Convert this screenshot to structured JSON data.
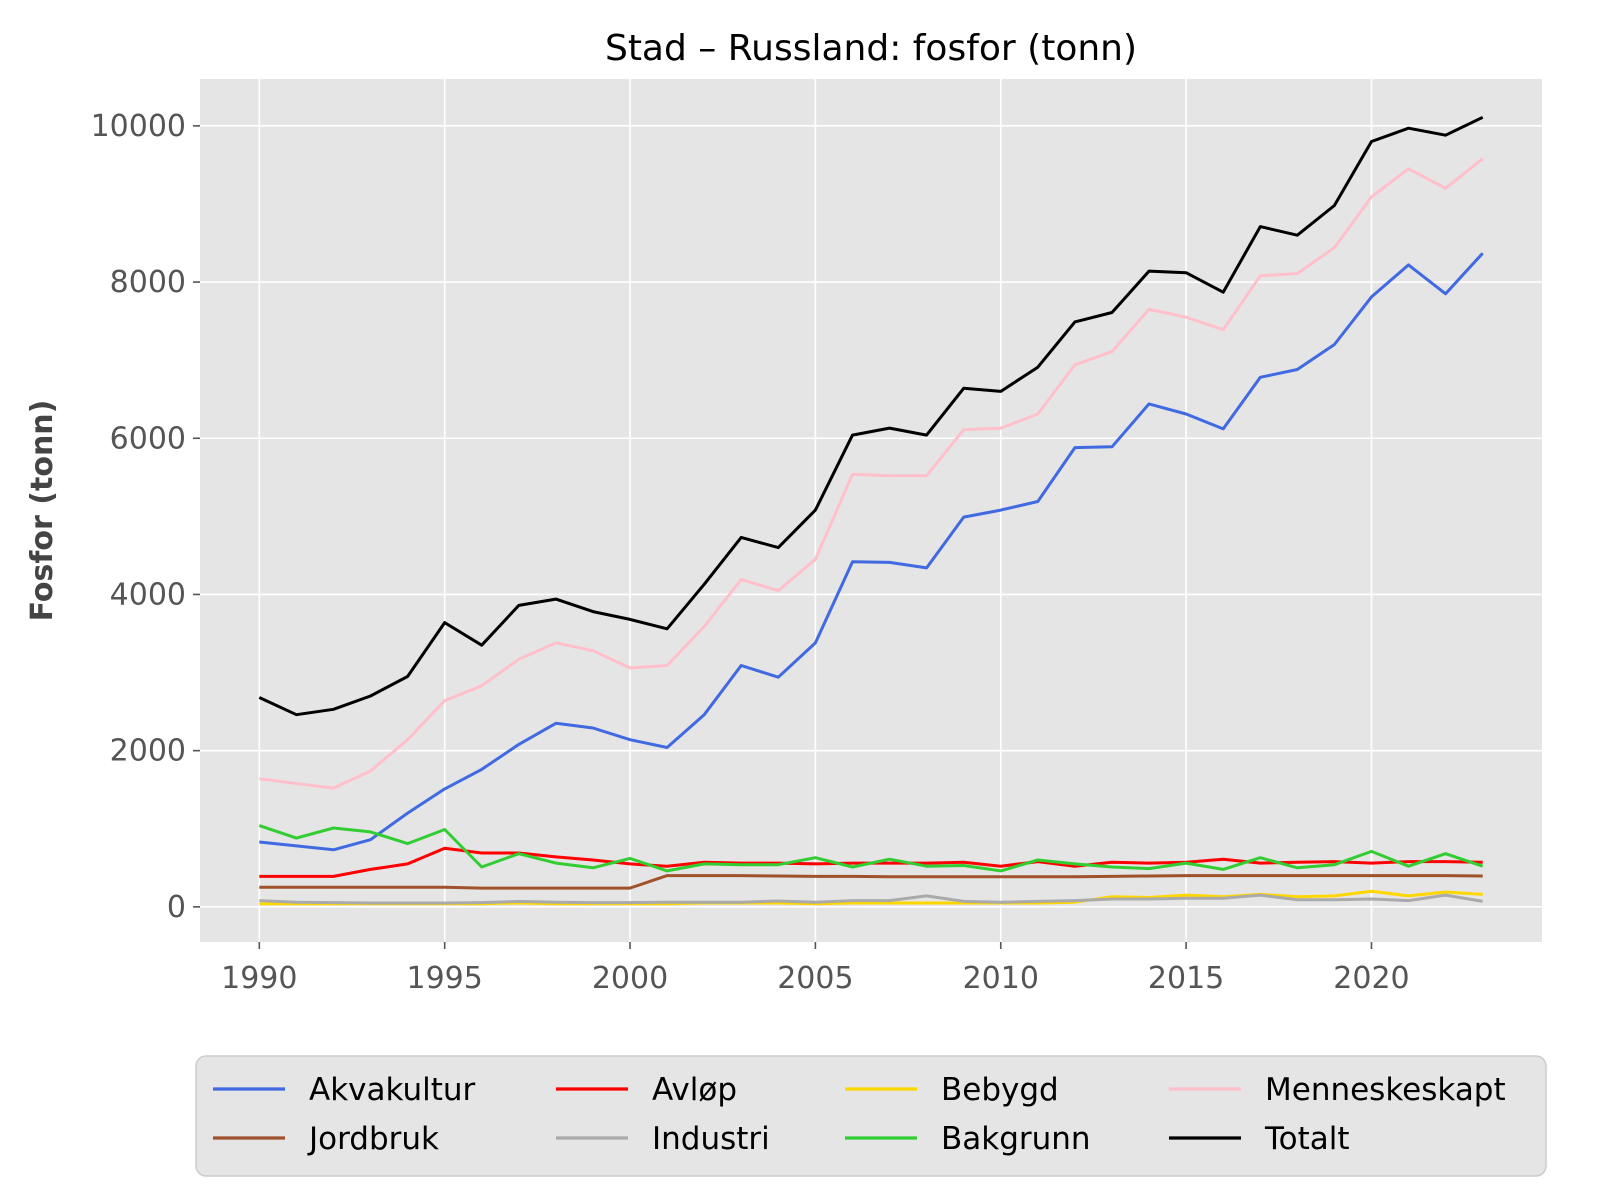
{
  "chart_data": {
    "type": "line",
    "title": "Stad – Russland: fosfor (tonn)",
    "xlabel": "",
    "ylabel": "Fosfor (tonn)",
    "xlim": [
      1988.4,
      2024.6
    ],
    "ylim": [
      -450,
      10600
    ],
    "xticks": [
      1990,
      1995,
      2000,
      2005,
      2010,
      2015,
      2020
    ],
    "yticks": [
      0,
      2000,
      4000,
      6000,
      8000,
      10000
    ],
    "grid": true,
    "legend_position": "bottom-center",
    "x": [
      1990,
      1991,
      1992,
      1993,
      1994,
      1995,
      1996,
      1997,
      1998,
      1999,
      2000,
      2001,
      2002,
      2003,
      2004,
      2005,
      2006,
      2007,
      2008,
      2009,
      2010,
      2011,
      2012,
      2013,
      2014,
      2015,
      2016,
      2017,
      2018,
      2019,
      2020,
      2021,
      2022,
      2023
    ],
    "series": [
      {
        "name": "Akvakultur",
        "color": "#4169e1",
        "values": [
          830,
          780,
          730,
          860,
          1200,
          1510,
          1760,
          2080,
          2350,
          2290,
          2140,
          2040,
          2460,
          3090,
          2940,
          3380,
          4420,
          4410,
          4340,
          4990,
          5080,
          5190,
          5880,
          5890,
          6440,
          6310,
          6120,
          6780,
          6880,
          7200,
          7810,
          8220,
          7850,
          8370
        ]
      },
      {
        "name": "Avløp",
        "color": "#ff0000",
        "values": [
          390,
          390,
          390,
          480,
          550,
          750,
          690,
          690,
          640,
          600,
          550,
          520,
          570,
          560,
          560,
          550,
          560,
          560,
          560,
          570,
          520,
          580,
          520,
          570,
          560,
          570,
          610,
          560,
          570,
          580,
          560,
          580,
          580,
          570
        ]
      },
      {
        "name": "Bebygd",
        "color": "#ffd700",
        "values": [
          40,
          40,
          40,
          40,
          40,
          40,
          40,
          50,
          40,
          40,
          40,
          40,
          50,
          50,
          50,
          40,
          50,
          50,
          50,
          50,
          50,
          50,
          60,
          130,
          120,
          150,
          130,
          160,
          130,
          140,
          200,
          140,
          190,
          160
        ]
      },
      {
        "name": "Menneskeskapt",
        "color": "#ffc0cb",
        "values": [
          1640,
          1580,
          1520,
          1740,
          2140,
          2640,
          2830,
          3170,
          3380,
          3280,
          3060,
          3090,
          3590,
          4190,
          4050,
          4450,
          5540,
          5520,
          5520,
          6110,
          6130,
          6310,
          6940,
          7110,
          7650,
          7550,
          7390,
          8080,
          8110,
          8440,
          9090,
          9450,
          9200,
          9580
        ]
      },
      {
        "name": "Jordbruk",
        "color": "#a0522d",
        "values": [
          250,
          250,
          250,
          250,
          250,
          250,
          240,
          240,
          240,
          240,
          240,
          400,
          400,
          400,
          395,
          390,
          390,
          385,
          385,
          385,
          385,
          385,
          385,
          390,
          395,
          400,
          400,
          400,
          400,
          400,
          400,
          400,
          400,
          395
        ]
      },
      {
        "name": "Industri",
        "color": "#aaaaaa",
        "values": [
          80,
          60,
          55,
          50,
          50,
          50,
          55,
          70,
          60,
          55,
          55,
          60,
          60,
          60,
          75,
          60,
          80,
          80,
          140,
          70,
          60,
          70,
          80,
          100,
          100,
          110,
          110,
          150,
          90,
          90,
          100,
          80,
          150,
          70
        ]
      },
      {
        "name": "Bakgrunn",
        "color": "#32cd32",
        "values": [
          1040,
          880,
          1010,
          960,
          810,
          990,
          510,
          680,
          560,
          500,
          620,
          460,
          550,
          540,
          540,
          630,
          510,
          610,
          520,
          530,
          460,
          600,
          550,
          510,
          490,
          560,
          480,
          630,
          500,
          540,
          710,
          520,
          680,
          520
        ]
      },
      {
        "name": "Totalt",
        "color": "#000000",
        "values": [
          2680,
          2460,
          2530,
          2700,
          2950,
          3640,
          3350,
          3860,
          3940,
          3780,
          3680,
          3560,
          4130,
          4730,
          4600,
          5080,
          6040,
          6130,
          6040,
          6640,
          6600,
          6910,
          7490,
          7610,
          8140,
          8120,
          7870,
          8710,
          8600,
          8980,
          9800,
          9970,
          9880,
          10110
        ]
      }
    ],
    "legend_order": [
      "Akvakultur",
      "Jordbruk",
      "Avløp",
      "Industri",
      "Bebygd",
      "Bakgrunn",
      "Menneskeskapt",
      "Totalt"
    ]
  }
}
